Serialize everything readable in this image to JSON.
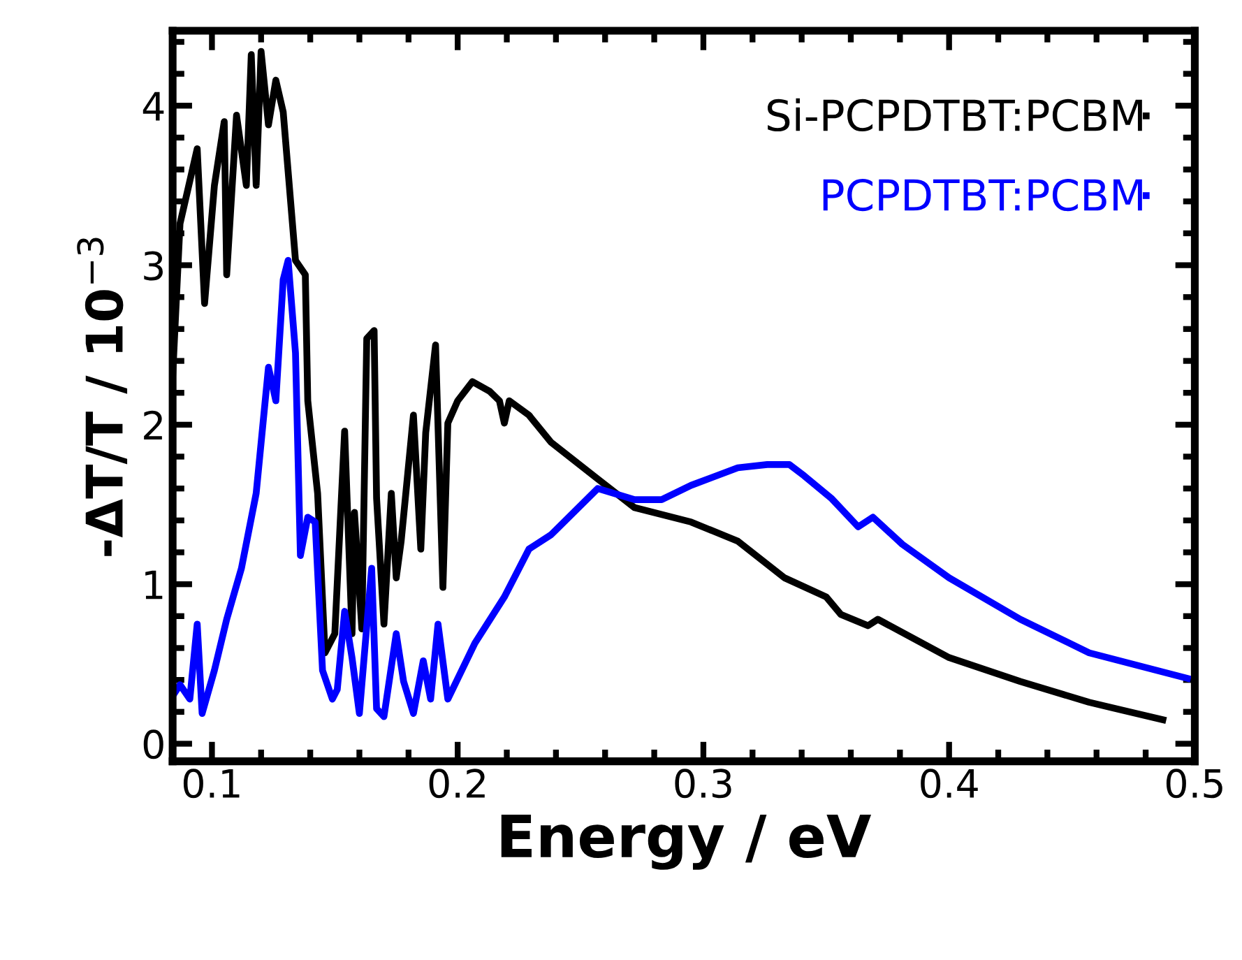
{
  "chart_data": {
    "type": "line",
    "xlabel": "Energy / eV",
    "ylabel": "-ΔT/T / 10$^{−3}$",
    "xlim": [
      0.084,
      0.5
    ],
    "ylim": [
      -0.11,
      4.47
    ],
    "xticks": [
      0.1,
      0.2,
      0.3,
      0.4,
      0.5
    ],
    "yticks": [
      0,
      1,
      2,
      3,
      4
    ],
    "grid": false,
    "legend": "top right",
    "marker": "none",
    "line_style": "solid",
    "series": [
      {
        "name": "Si-PCPDTBT:PCBM",
        "color": "#000000",
        "x": [
          0.084,
          0.087,
          0.094,
          0.097,
          0.101,
          0.105,
          0.106,
          0.11,
          0.114,
          0.116,
          0.118,
          0.12,
          0.123,
          0.126,
          0.129,
          0.134,
          0.138,
          0.139,
          0.143,
          0.146,
          0.15,
          0.154,
          0.157,
          0.158,
          0.161,
          0.163,
          0.166,
          0.167,
          0.17,
          0.173,
          0.175,
          0.177,
          0.182,
          0.185,
          0.187,
          0.191,
          0.194,
          0.196,
          0.2,
          0.206,
          0.213,
          0.217,
          0.219,
          0.221,
          0.229,
          0.238,
          0.257,
          0.272,
          0.295,
          0.314,
          0.333,
          0.35,
          0.356,
          0.367,
          0.371,
          0.4,
          0.429,
          0.457,
          0.487
        ],
        "values": [
          2.3,
          3.26,
          3.73,
          2.76,
          3.5,
          3.9,
          2.94,
          3.94,
          3.5,
          4.32,
          3.5,
          4.34,
          3.88,
          4.16,
          3.96,
          3.03,
          2.94,
          2.15,
          1.57,
          0.57,
          0.69,
          1.96,
          0.69,
          1.45,
          0.72,
          2.54,
          2.59,
          1.54,
          0.75,
          1.57,
          1.04,
          1.27,
          2.06,
          1.22,
          1.95,
          2.5,
          0.98,
          2.01,
          2.15,
          2.27,
          2.21,
          2.15,
          2.01,
          2.15,
          2.06,
          1.89,
          1.66,
          1.48,
          1.39,
          1.27,
          1.04,
          0.92,
          0.81,
          0.74,
          0.78,
          0.54,
          0.39,
          0.26,
          0.15
        ]
      },
      {
        "name": "PCPDTBT:PCBM",
        "color": "#0000ff",
        "x": [
          0.084,
          0.087,
          0.091,
          0.094,
          0.096,
          0.101,
          0.106,
          0.112,
          0.118,
          0.123,
          0.126,
          0.129,
          0.131,
          0.134,
          0.136,
          0.139,
          0.142,
          0.145,
          0.149,
          0.151,
          0.154,
          0.157,
          0.16,
          0.165,
          0.167,
          0.17,
          0.175,
          0.178,
          0.182,
          0.186,
          0.189,
          0.192,
          0.196,
          0.207,
          0.219,
          0.229,
          0.238,
          0.257,
          0.272,
          0.283,
          0.295,
          0.314,
          0.326,
          0.335,
          0.341,
          0.352,
          0.363,
          0.369,
          0.381,
          0.4,
          0.429,
          0.457,
          0.497
        ],
        "values": [
          0.3,
          0.37,
          0.28,
          0.75,
          0.19,
          0.46,
          0.78,
          1.1,
          1.57,
          2.36,
          2.15,
          2.91,
          3.03,
          2.45,
          1.18,
          1.42,
          1.39,
          0.46,
          0.28,
          0.34,
          0.83,
          0.54,
          0.19,
          1.1,
          0.22,
          0.17,
          0.69,
          0.39,
          0.19,
          0.52,
          0.28,
          0.75,
          0.28,
          0.63,
          0.92,
          1.22,
          1.31,
          1.6,
          1.53,
          1.53,
          1.62,
          1.73,
          1.75,
          1.75,
          1.68,
          1.54,
          1.36,
          1.42,
          1.25,
          1.04,
          0.78,
          0.57,
          0.41
        ]
      }
    ]
  }
}
